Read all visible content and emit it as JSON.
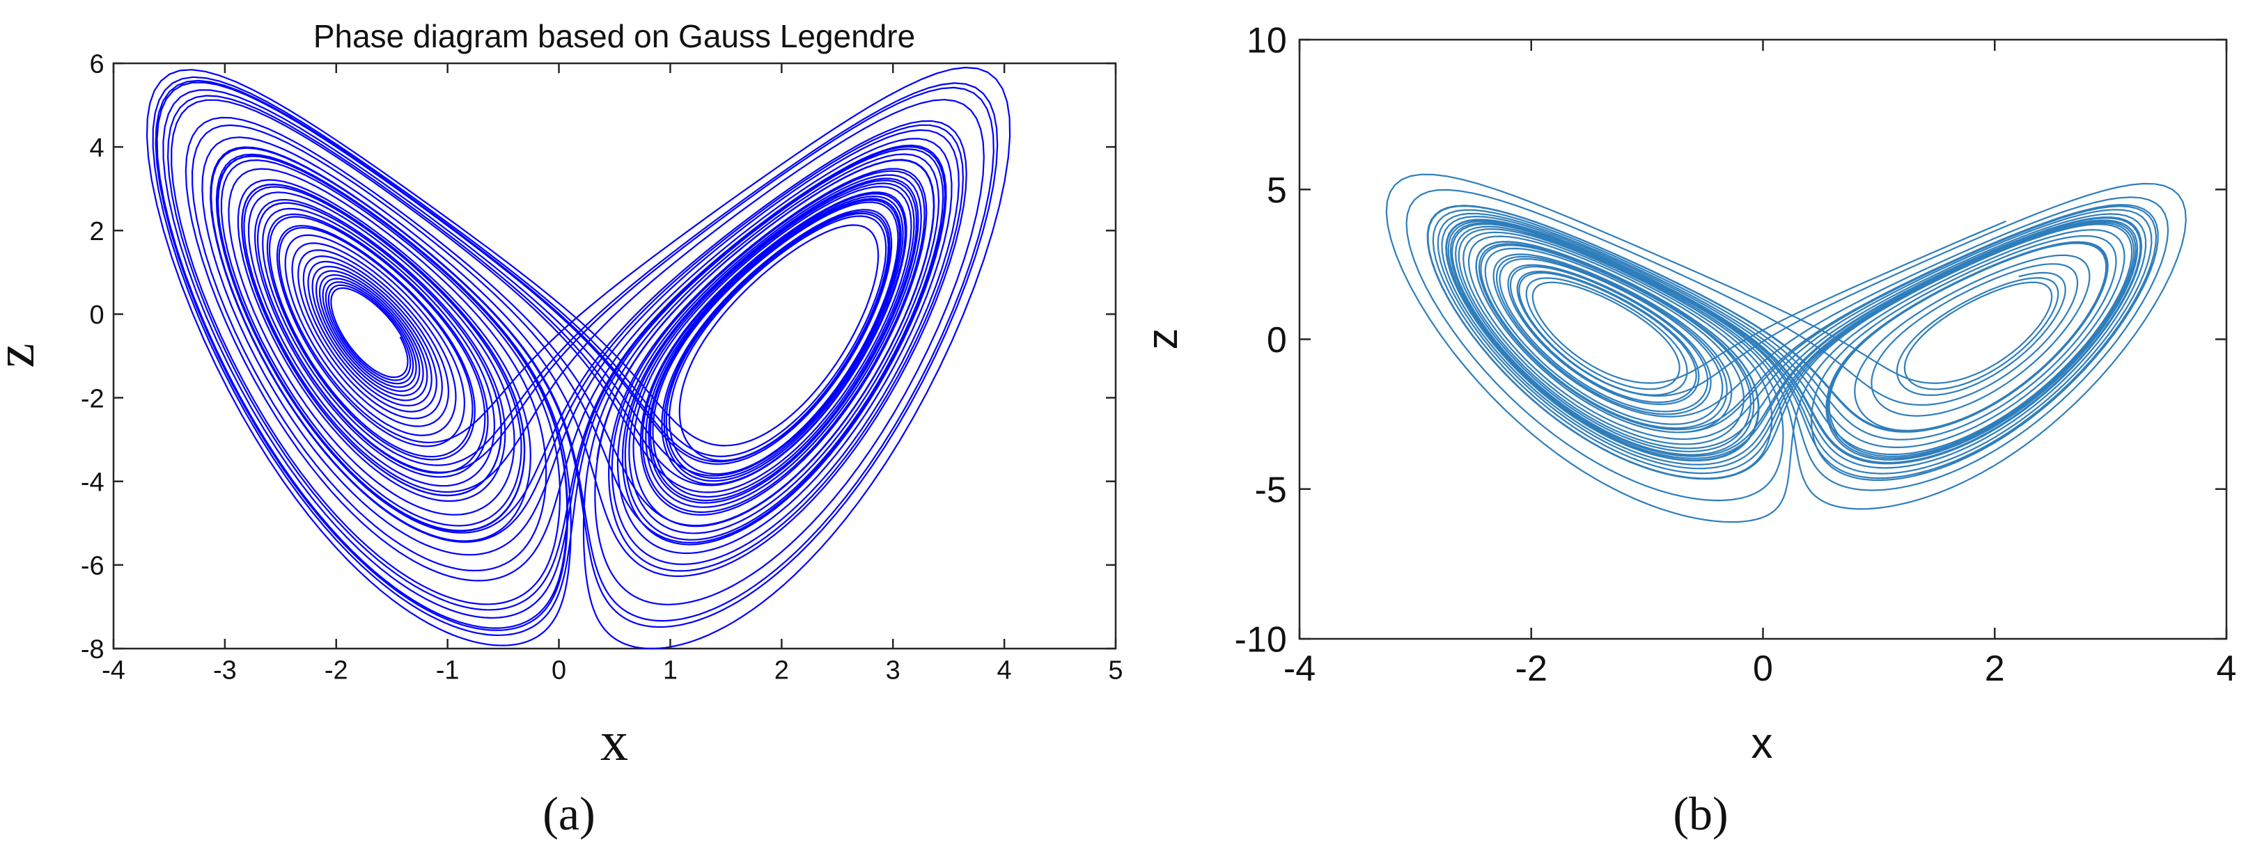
{
  "chart_data": [
    {
      "type": "line",
      "title": "Phase diagram based on Gauss Legendre",
      "xlabel": "x",
      "ylabel": "z",
      "caption": "(a)",
      "xlim": [
        -4,
        5
      ],
      "ylim": [
        -8,
        6
      ],
      "xticks": [
        -4,
        -3,
        -2,
        -1,
        0,
        1,
        2,
        3,
        4,
        5
      ],
      "yticks": [
        -8,
        -6,
        -4,
        -2,
        0,
        2,
        4,
        6
      ],
      "grid": false,
      "color": "#0000ff",
      "series": [
        {
          "x_range": [
            -3.7,
            4.05
          ],
          "z_range": [
            -8.0,
            5.9
          ],
          "left_focus": [
            -1.0,
            -0.3
          ],
          "right_focus": [
            1.0,
            -0.1
          ]
        }
      ]
    },
    {
      "type": "line",
      "title": "",
      "xlabel": "x",
      "ylabel": "z",
      "caption": "(b)",
      "xlim": [
        -4,
        4
      ],
      "ylim": [
        -10,
        10
      ],
      "xticks": [
        -4,
        -2,
        0,
        2,
        4
      ],
      "yticks": [
        -10,
        -5,
        0,
        5,
        10
      ],
      "grid": false,
      "color": "#2f7ebc",
      "series": [
        {
          "x_range": [
            -3.25,
            3.65
          ],
          "z_range": [
            -6.1,
            5.5
          ],
          "left_focus": [
            -0.9,
            0.0
          ],
          "right_focus": [
            0.9,
            0.1
          ]
        }
      ]
    }
  ]
}
